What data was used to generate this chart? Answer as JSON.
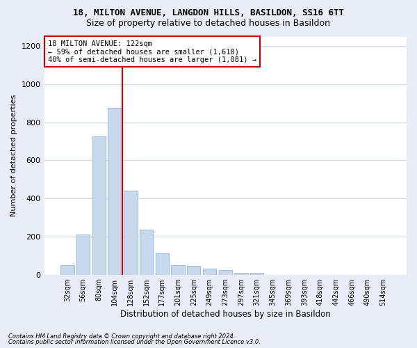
{
  "title": "18, MILTON AVENUE, LANGDON HILLS, BASILDON, SS16 6TT",
  "subtitle": "Size of property relative to detached houses in Basildon",
  "xlabel": "Distribution of detached houses by size in Basildon",
  "ylabel": "Number of detached properties",
  "categories": [
    "32sqm",
    "56sqm",
    "80sqm",
    "104sqm",
    "128sqm",
    "152sqm",
    "177sqm",
    "201sqm",
    "225sqm",
    "249sqm",
    "273sqm",
    "297sqm",
    "321sqm",
    "345sqm",
    "369sqm",
    "393sqm",
    "418sqm",
    "442sqm",
    "466sqm",
    "490sqm",
    "514sqm"
  ],
  "values": [
    50,
    210,
    725,
    875,
    440,
    235,
    110,
    50,
    45,
    30,
    25,
    10,
    10,
    0,
    0,
    0,
    0,
    0,
    0,
    0,
    0
  ],
  "bar_color": "#c8d9ee",
  "bar_edge_color": "#8ab4d8",
  "annotation_text": "18 MILTON AVENUE: 122sqm\n← 59% of detached houses are smaller (1,618)\n40% of semi-detached houses are larger (1,081) →",
  "vline_x_idx": 4,
  "vline_color": "#cc0000",
  "ylim": [
    0,
    1250
  ],
  "yticks": [
    0,
    200,
    400,
    600,
    800,
    1000,
    1200
  ],
  "footer1": "Contains HM Land Registry data © Crown copyright and database right 2024.",
  "footer2": "Contains public sector information licensed under the Open Government Licence v3.0.",
  "fig_background_color": "#e8edf8",
  "ax_background_color": "#ffffff",
  "grid_color": "#d0d8e8",
  "annotation_box_facecolor": "#ffffff",
  "annotation_box_edgecolor": "#cc0000",
  "title_fontsize": 9,
  "subtitle_fontsize": 9
}
